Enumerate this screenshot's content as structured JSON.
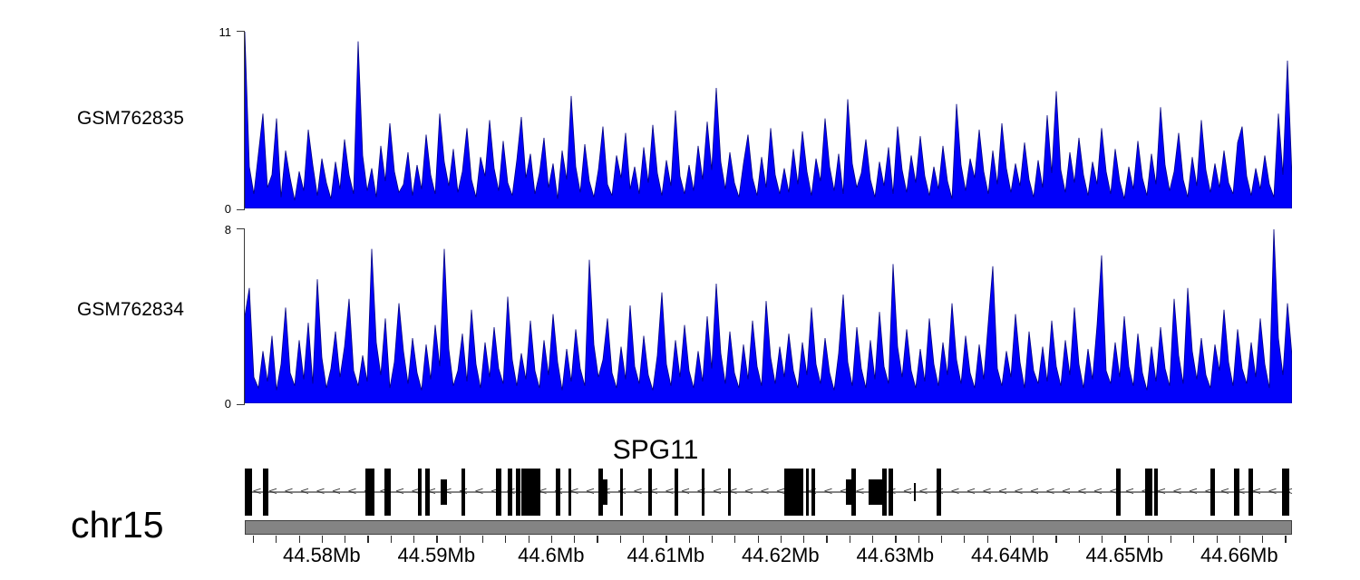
{
  "figure": {
    "background": "#ffffff"
  },
  "colors": {
    "signal_fill": "#0000fa",
    "signal_stroke": "#000080",
    "axis_line": "#3a3a3a",
    "ideogram_fill": "#848484",
    "ideogram_border": "#3f3f3f",
    "intron_line": "#848484",
    "arrow": "#3c3c3c",
    "exon_fill": "#000000",
    "text": "#000000"
  },
  "chart_data": [
    {
      "type": "area",
      "name": "GSM762835",
      "role": "coverage-signal-track",
      "ylim": [
        0,
        11
      ],
      "ytick_labels": [
        "0",
        "11"
      ],
      "x_range_mb": [
        44.5733,
        44.6646
      ],
      "values": [
        11,
        2.6,
        0.9,
        3.4,
        5.9,
        1.3,
        2.1,
        5.6,
        0.7,
        3.6,
        1.9,
        0.5,
        2.3,
        1.1,
        4.9,
        2.7,
        0.8,
        3.1,
        1.6,
        0.6,
        2.9,
        1.2,
        4.3,
        2.1,
        0.9,
        10.4,
        3.3,
        1.1,
        2.5,
        0.7,
        3.9,
        1.7,
        5.3,
        2.3,
        1.0,
        1.5,
        3.5,
        0.8,
        2.7,
        1.2,
        4.6,
        2.1,
        0.9,
        5.9,
        2.9,
        1.4,
        3.7,
        1.0,
        2.3,
        5.0,
        1.8,
        0.7,
        3.2,
        2.0,
        5.5,
        2.5,
        1.1,
        4.2,
        1.6,
        0.8,
        3.0,
        5.7,
        1.9,
        3.4,
        0.9,
        2.2,
        4.4,
        1.3,
        2.8,
        0.6,
        3.6,
        1.8,
        7.0,
        2.6,
        1.0,
        4.0,
        1.7,
        0.7,
        2.4,
        5.1,
        1.5,
        0.8,
        3.3,
        1.9,
        4.7,
        1.2,
        2.6,
        0.9,
        3.8,
        1.6,
        5.2,
        2.2,
        0.8,
        3.0,
        1.4,
        6.1,
        2.0,
        0.9,
        2.7,
        1.1,
        3.9,
        1.8,
        5.4,
        2.4,
        7.5,
        2.9,
        1.2,
        3.5,
        1.6,
        0.7,
        2.8,
        4.6,
        1.9,
        0.8,
        3.2,
        1.3,
        5.0,
        2.1,
        0.9,
        2.5,
        1.0,
        3.7,
        1.5,
        4.8,
        2.3,
        0.8,
        3.1,
        1.7,
        5.6,
        2.6,
        1.1,
        3.4,
        0.9,
        6.8,
        2.8,
        1.3,
        2.2,
        4.3,
        1.8,
        0.7,
        2.9,
        1.4,
        3.8,
        0.9,
        5.1,
        2.4,
        1.0,
        3.3,
        1.6,
        4.5,
        2.0,
        0.8,
        2.6,
        1.2,
        3.9,
        1.7,
        0.6,
        6.5,
        2.7,
        1.1,
        3.1,
        1.9,
        4.9,
        2.3,
        0.9,
        3.6,
        1.5,
        5.3,
        2.5,
        1.0,
        2.8,
        1.4,
        4.1,
        1.8,
        0.7,
        3.0,
        1.3,
        5.8,
        2.2,
        7.3,
        2.4,
        1.0,
        3.5,
        1.6,
        4.4,
        2.1,
        0.8,
        2.9,
        1.5,
        5.0,
        2.3,
        0.9,
        3.7,
        1.7,
        0.6,
        2.6,
        1.2,
        4.2,
        1.9,
        0.8,
        3.4,
        1.5,
        6.3,
        2.7,
        1.1,
        2.3,
        4.7,
        1.8,
        0.7,
        3.2,
        1.4,
        5.5,
        2.4,
        1.0,
        2.8,
        1.3,
        3.6,
        1.6,
        0.9,
        4.1,
        5.1,
        2.0,
        0.8,
        2.5,
        1.2,
        3.3,
        1.5,
        0.7,
        5.9,
        2.1,
        9.2,
        2.0
      ]
    },
    {
      "type": "area",
      "name": "GSM762834",
      "role": "coverage-signal-track",
      "ylim": [
        0,
        8
      ],
      "ytick_labels": [
        "0",
        "8"
      ],
      "x_range_mb": [
        44.5733,
        44.6646
      ],
      "values": [
        4.0,
        5.3,
        1.2,
        0.7,
        2.4,
        1.0,
        3.1,
        0.6,
        1.8,
        4.4,
        1.4,
        0.8,
        2.9,
        1.1,
        3.7,
        0.9,
        5.7,
        2.1,
        0.7,
        1.6,
        3.3,
        1.2,
        2.6,
        4.8,
        1.5,
        0.8,
        2.2,
        1.0,
        7.1,
        2.8,
        1.3,
        3.9,
        0.7,
        1.9,
        4.6,
        2.4,
        0.9,
        3.0,
        1.4,
        0.6,
        2.7,
        1.1,
        3.6,
        1.7,
        7.1,
        2.5,
        0.8,
        1.5,
        3.2,
        1.0,
        4.3,
        1.8,
        0.7,
        2.8,
        1.2,
        3.5,
        1.6,
        0.9,
        4.9,
        2.0,
        0.8,
        2.3,
        1.1,
        3.8,
        1.5,
        0.7,
        2.9,
        1.3,
        4.1,
        1.9,
        0.6,
        2.5,
        1.0,
        3.4,
        1.6,
        0.8,
        6.6,
        2.7,
        1.2,
        2.0,
        3.9,
        1.4,
        0.7,
        2.6,
        1.1,
        4.5,
        1.7,
        0.9,
        3.1,
        1.3,
        0.6,
        2.2,
        5.1,
        1.8,
        0.8,
        2.9,
        1.2,
        3.6,
        1.5,
        0.7,
        2.4,
        1.0,
        4.0,
        1.6,
        5.5,
        2.3,
        0.9,
        3.3,
        1.4,
        0.7,
        2.7,
        1.1,
        3.8,
        1.7,
        0.8,
        4.7,
        2.1,
        0.9,
        2.6,
        1.2,
        3.2,
        1.5,
        0.7,
        2.8,
        1.3,
        4.4,
        1.8,
        0.9,
        3.0,
        1.4,
        0.6,
        2.3,
        5.0,
        1.9,
        0.8,
        3.5,
        1.6,
        0.7,
        2.9,
        1.1,
        4.2,
        1.7,
        0.9,
        6.4,
        2.6,
        1.2,
        3.4,
        1.5,
        0.7,
        2.5,
        1.0,
        3.9,
        1.8,
        0.8,
        2.8,
        1.3,
        4.6,
        2.0,
        0.9,
        3.1,
        1.4,
        0.7,
        2.7,
        1.1,
        3.7,
        6.3,
        1.6,
        0.8,
        2.4,
        1.2,
        4.1,
        1.9,
        0.7,
        3.3,
        1.5,
        0.9,
        2.6,
        1.0,
        3.8,
        1.7,
        0.8,
        2.9,
        1.3,
        4.4,
        1.8,
        0.7,
        2.5,
        1.1,
        3.6,
        6.8,
        1.5,
        0.9,
        2.8,
        1.2,
        4.0,
        1.7,
        0.8,
        3.2,
        1.4,
        0.6,
        2.6,
        1.0,
        3.5,
        1.6,
        0.8,
        4.8,
        2.2,
        0.9,
        5.3,
        2.4,
        1.1,
        3.0,
        1.3,
        0.7,
        2.7,
        1.5,
        4.3,
        1.9,
        0.8,
        3.4,
        1.6,
        0.9,
        2.8,
        1.2,
        3.9,
        1.8,
        0.7,
        8.0,
        3.0,
        1.3,
        4.6,
        2.2
      ]
    },
    {
      "type": "gene-model",
      "name": "SPG11",
      "chromosome": "chr15",
      "strand": "-",
      "x_range_mb": [
        44.5733,
        44.6646
      ],
      "exons_mb": [
        [
          44.5733,
          44.5739,
          "tall"
        ],
        [
          44.5749,
          44.5754,
          "tall"
        ],
        [
          44.5838,
          44.5846,
          "tall"
        ],
        [
          44.5855,
          44.586,
          "tall"
        ],
        [
          44.5884,
          44.5887,
          "tall"
        ],
        [
          44.589,
          44.5894,
          "tall"
        ],
        [
          44.5904,
          44.5909,
          "short"
        ],
        [
          44.5922,
          44.5925,
          "tall"
        ],
        [
          44.5952,
          44.5957,
          "tall"
        ],
        [
          44.5962,
          44.5966,
          "tall"
        ],
        [
          44.5969,
          44.5973,
          "tall"
        ],
        [
          44.5974,
          44.5991,
          "tall"
        ],
        [
          44.6004,
          44.6008,
          "tall"
        ],
        [
          44.6015,
          44.6018,
          "tall"
        ],
        [
          44.6041,
          44.6045,
          "tall"
        ],
        [
          44.6045,
          44.6049,
          "short"
        ],
        [
          44.606,
          44.6063,
          "tall"
        ],
        [
          44.6085,
          44.6088,
          "tall"
        ],
        [
          44.6108,
          44.6111,
          "tall"
        ],
        [
          44.6131,
          44.6134,
          "tall"
        ],
        [
          44.6154,
          44.6157,
          "tall"
        ],
        [
          44.6203,
          44.622,
          "tall"
        ],
        [
          44.6222,
          44.6225,
          "tall"
        ],
        [
          44.6227,
          44.623,
          "tall"
        ],
        [
          44.6257,
          44.6262,
          "short"
        ],
        [
          44.6262,
          44.6266,
          "tall"
        ],
        [
          44.6277,
          44.629,
          "short"
        ],
        [
          44.6289,
          44.6293,
          "tall"
        ],
        [
          44.6294,
          44.6298,
          "tall"
        ],
        [
          44.6316,
          44.6318,
          "half"
        ],
        [
          44.6336,
          44.634,
          "tall"
        ],
        [
          44.6493,
          44.6497,
          "tall"
        ],
        [
          44.6518,
          44.6524,
          "tall"
        ],
        [
          44.6526,
          44.6529,
          "tall"
        ],
        [
          44.6575,
          44.6579,
          "tall"
        ],
        [
          44.6595,
          44.66,
          "tall"
        ],
        [
          44.6608,
          44.6612,
          "tall"
        ],
        [
          44.6637,
          44.6644,
          "tall"
        ]
      ]
    },
    {
      "type": "genome-axis",
      "chromosome": "chr15",
      "unit": "Mb",
      "range_mb": [
        44.5733,
        44.6646
      ],
      "minor_tick_start_mb": 44.574,
      "minor_tick_step_mb": 0.002,
      "minor_tick_count": 46,
      "major_ticks": [
        {
          "mb": 44.58,
          "label": "44.58Mb"
        },
        {
          "mb": 44.59,
          "label": "44.59Mb"
        },
        {
          "mb": 44.6,
          "label": "44.6Mb"
        },
        {
          "mb": 44.61,
          "label": "44.61Mb"
        },
        {
          "mb": 44.62,
          "label": "44.62Mb"
        },
        {
          "mb": 44.63,
          "label": "44.63Mb"
        },
        {
          "mb": 44.64,
          "label": "44.64Mb"
        },
        {
          "mb": 44.65,
          "label": "44.65Mb"
        },
        {
          "mb": 44.66,
          "label": "44.66Mb"
        }
      ]
    }
  ]
}
